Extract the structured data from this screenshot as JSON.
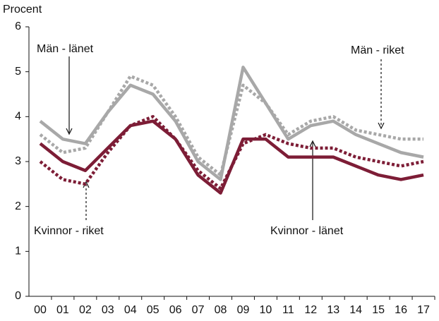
{
  "chart_data": {
    "type": "line",
    "y_axis_label": "Procent",
    "categories": [
      "00",
      "01",
      "02",
      "03",
      "04",
      "05",
      "06",
      "07",
      "08",
      "09",
      "10",
      "11",
      "12",
      "13",
      "14",
      "15",
      "16",
      "17"
    ],
    "series": [
      {
        "name": "Män - länet",
        "color": "#a8a8a8",
        "dashed": false,
        "values": [
          3.9,
          3.5,
          3.4,
          4.1,
          4.7,
          4.5,
          3.9,
          3.0,
          2.6,
          5.1,
          4.3,
          3.5,
          3.8,
          3.9,
          3.6,
          3.4,
          3.2,
          3.1
        ]
      },
      {
        "name": "Män - riket",
        "color": "#a8a8a8",
        "dashed": true,
        "values": [
          3.6,
          3.2,
          3.3,
          4.1,
          4.9,
          4.7,
          4.0,
          3.1,
          2.7,
          4.7,
          4.3,
          3.6,
          3.9,
          4.0,
          3.7,
          3.6,
          3.5,
          3.5
        ]
      },
      {
        "name": "Kvinnor - riket",
        "color": "#7d1d36",
        "dashed": true,
        "values": [
          3.0,
          2.6,
          2.5,
          3.2,
          3.8,
          4.0,
          3.5,
          2.8,
          2.4,
          3.4,
          3.6,
          3.4,
          3.3,
          3.3,
          3.1,
          3.0,
          2.9,
          3.0
        ]
      },
      {
        "name": "Kvinnor - länet",
        "color": "#7d1d36",
        "dashed": false,
        "values": [
          3.4,
          3.0,
          2.8,
          3.3,
          3.8,
          3.9,
          3.5,
          2.7,
          2.3,
          3.5,
          3.5,
          3.1,
          3.1,
          3.1,
          2.9,
          2.7,
          2.6,
          2.7
        ]
      }
    ],
    "ylim": [
      0,
      6
    ],
    "yticks": [
      0,
      1,
      2,
      3,
      4,
      5,
      6
    ],
    "grid": false
  }
}
